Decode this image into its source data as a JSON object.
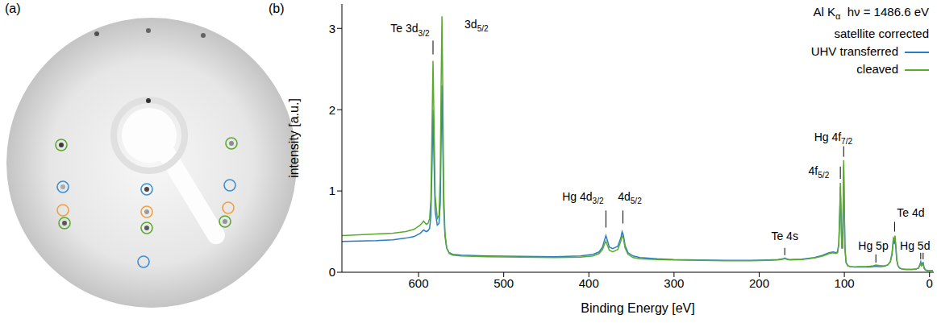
{
  "panel_labels": [
    "(a)",
    "(b)"
  ],
  "chart_data": {
    "type": "line",
    "x_label": "Binding Energy [eV]",
    "y_label": "intensity [a.u.]",
    "xlim": [
      690,
      -5
    ],
    "xticks": [
      600,
      500,
      400,
      300,
      200,
      100,
      0
    ],
    "ylim": [
      0,
      3.3
    ],
    "yticks": [
      0,
      1,
      2,
      3
    ],
    "legend": "top-right",
    "legend_title": [
      {
        "text": "Al K",
        "sub": "α",
        "after": "  hν = 1486.6 eV"
      },
      {
        "text": "satellite corrected"
      }
    ],
    "x": [
      690,
      670,
      650,
      630,
      615,
      605,
      598,
      594,
      591,
      589,
      587,
      585.5,
      584,
      583,
      582,
      580.5,
      578,
      576,
      574.5,
      573.5,
      572.5,
      571.5,
      570.5,
      569,
      567,
      564,
      560,
      550,
      520,
      480,
      440,
      410,
      395,
      388,
      384,
      381.5,
      380,
      378.5,
      376,
      372,
      366,
      362.5,
      361,
      359.5,
      357.5,
      354,
      348,
      340,
      320,
      300,
      270,
      240,
      210,
      190,
      178,
      172,
      170,
      168,
      164,
      150,
      135,
      125,
      118,
      113,
      110,
      108,
      106.5,
      105.3,
      104.7,
      104,
      103,
      102,
      101.4,
      100.8,
      100.2,
      99.3,
      98,
      96,
      93,
      88,
      84,
      80,
      75,
      70,
      66,
      63,
      60,
      57,
      53,
      49,
      46,
      44,
      42.5,
      41.5,
      40.5,
      39.5,
      38.5,
      37,
      35,
      32,
      28,
      24,
      20,
      16,
      13,
      11.5,
      10.3,
      9.5,
      8.5,
      7.5,
      6.5,
      5,
      3,
      1,
      -4
    ],
    "series": [
      {
        "name": "UHV transferred",
        "color": "#2a7dc4",
        "values": [
          0.38,
          0.385,
          0.39,
          0.4,
          0.42,
          0.44,
          0.48,
          0.52,
          0.5,
          0.51,
          0.54,
          0.7,
          1.4,
          2.0,
          1.45,
          0.75,
          0.58,
          0.6,
          0.85,
          1.6,
          2.3,
          1.55,
          0.8,
          0.45,
          0.3,
          0.24,
          0.22,
          0.21,
          0.2,
          0.195,
          0.19,
          0.2,
          0.22,
          0.25,
          0.31,
          0.4,
          0.45,
          0.4,
          0.31,
          0.29,
          0.32,
          0.42,
          0.5,
          0.46,
          0.33,
          0.24,
          0.2,
          0.18,
          0.165,
          0.155,
          0.15,
          0.145,
          0.145,
          0.15,
          0.155,
          0.165,
          0.175,
          0.165,
          0.155,
          0.16,
          0.18,
          0.21,
          0.24,
          0.25,
          0.24,
          0.25,
          0.35,
          0.75,
          1.05,
          0.75,
          0.3,
          0.3,
          0.8,
          1.32,
          0.85,
          0.3,
          0.12,
          0.08,
          0.07,
          0.065,
          0.065,
          0.065,
          0.065,
          0.065,
          0.07,
          0.075,
          0.07,
          0.07,
          0.075,
          0.09,
          0.13,
          0.22,
          0.38,
          0.36,
          0.4,
          0.3,
          0.15,
          0.08,
          0.05,
          0.04,
          0.035,
          0.035,
          0.035,
          0.04,
          0.05,
          0.09,
          0.13,
          0.09,
          0.11,
          0.12,
          0.06,
          0.03,
          0.02,
          0.02,
          0.02
        ]
      },
      {
        "name": "cleaved",
        "color": "#5aaa2c",
        "values": [
          0.45,
          0.46,
          0.47,
          0.48,
          0.5,
          0.53,
          0.58,
          0.63,
          0.59,
          0.6,
          0.66,
          0.9,
          1.9,
          2.6,
          1.95,
          0.95,
          0.66,
          0.7,
          1.2,
          2.3,
          3.15,
          2.2,
          1.0,
          0.5,
          0.3,
          0.23,
          0.21,
          0.2,
          0.19,
          0.185,
          0.18,
          0.185,
          0.2,
          0.23,
          0.28,
          0.35,
          0.38,
          0.34,
          0.27,
          0.25,
          0.28,
          0.38,
          0.45,
          0.42,
          0.3,
          0.22,
          0.18,
          0.165,
          0.155,
          0.15,
          0.145,
          0.14,
          0.14,
          0.145,
          0.15,
          0.16,
          0.17,
          0.16,
          0.15,
          0.155,
          0.175,
          0.2,
          0.23,
          0.24,
          0.23,
          0.24,
          0.35,
          0.8,
          1.1,
          0.8,
          0.3,
          0.3,
          0.85,
          1.38,
          0.9,
          0.3,
          0.12,
          0.08,
          0.07,
          0.065,
          0.07,
          0.07,
          0.07,
          0.075,
          0.08,
          0.09,
          0.085,
          0.08,
          0.08,
          0.09,
          0.13,
          0.24,
          0.42,
          0.4,
          0.45,
          0.33,
          0.16,
          0.08,
          0.05,
          0.04,
          0.035,
          0.035,
          0.035,
          0.04,
          0.05,
          0.08,
          0.11,
          0.08,
          0.09,
          0.1,
          0.05,
          0.03,
          0.02,
          0.02,
          0.02
        ]
      }
    ],
    "annotations": [
      {
        "text": "Te 3d",
        "sub": "3/2",
        "x": 610,
        "y": 2.95,
        "ticks": [
          {
            "x": 583,
            "y": [
              2.68,
              2.85
            ]
          }
        ]
      },
      {
        "text": "3d",
        "sub": "5/2",
        "x": 532,
        "y": 3.0,
        "ticks": []
      },
      {
        "text": "Hg 4d",
        "sub": "3/2",
        "x": 407,
        "y": 0.88,
        "ticks": [
          {
            "x": 380,
            "y": [
              0.55,
              0.76
            ]
          }
        ]
      },
      {
        "text": "4d",
        "sub": "5/2",
        "x": 352,
        "y": 0.88,
        "ticks": [
          {
            "x": 360,
            "y": [
              0.6,
              0.76
            ]
          }
        ]
      },
      {
        "text": "Te 4s",
        "x": 170,
        "y": 0.4,
        "ticks": [
          {
            "x": 170,
            "y": [
              0.21,
              0.3
            ]
          }
        ]
      },
      {
        "text": "Hg 4f",
        "sub": "7/2",
        "x": 113,
        "y": 1.62,
        "ticks": [
          {
            "x": 100.8,
            "y": [
              1.42,
              1.55
            ]
          }
        ]
      },
      {
        "text": "4f",
        "sub": "5/2",
        "x": 130,
        "y": 1.2,
        "ticks": [
          {
            "x": 104.7,
            "y": [
              1.15,
              1.3
            ]
          }
        ]
      },
      {
        "text": "Hg 5p",
        "x": 66,
        "y": 0.28,
        "ticks": [
          {
            "x": 63,
            "y": [
              0.12,
              0.22
            ]
          }
        ]
      },
      {
        "text": "Te 4d",
        "x": 22,
        "y": 0.68,
        "ticks": [
          {
            "x": 41,
            "y": [
              0.5,
              0.62
            ]
          }
        ]
      },
      {
        "text": "Hg 5d",
        "x": 17,
        "y": 0.28,
        "ticks": [
          {
            "x": 10.3,
            "y": [
              0.16,
              0.24
            ]
          },
          {
            "x": 7.5,
            "y": [
              0.16,
              0.24
            ]
          }
        ]
      }
    ]
  }
}
